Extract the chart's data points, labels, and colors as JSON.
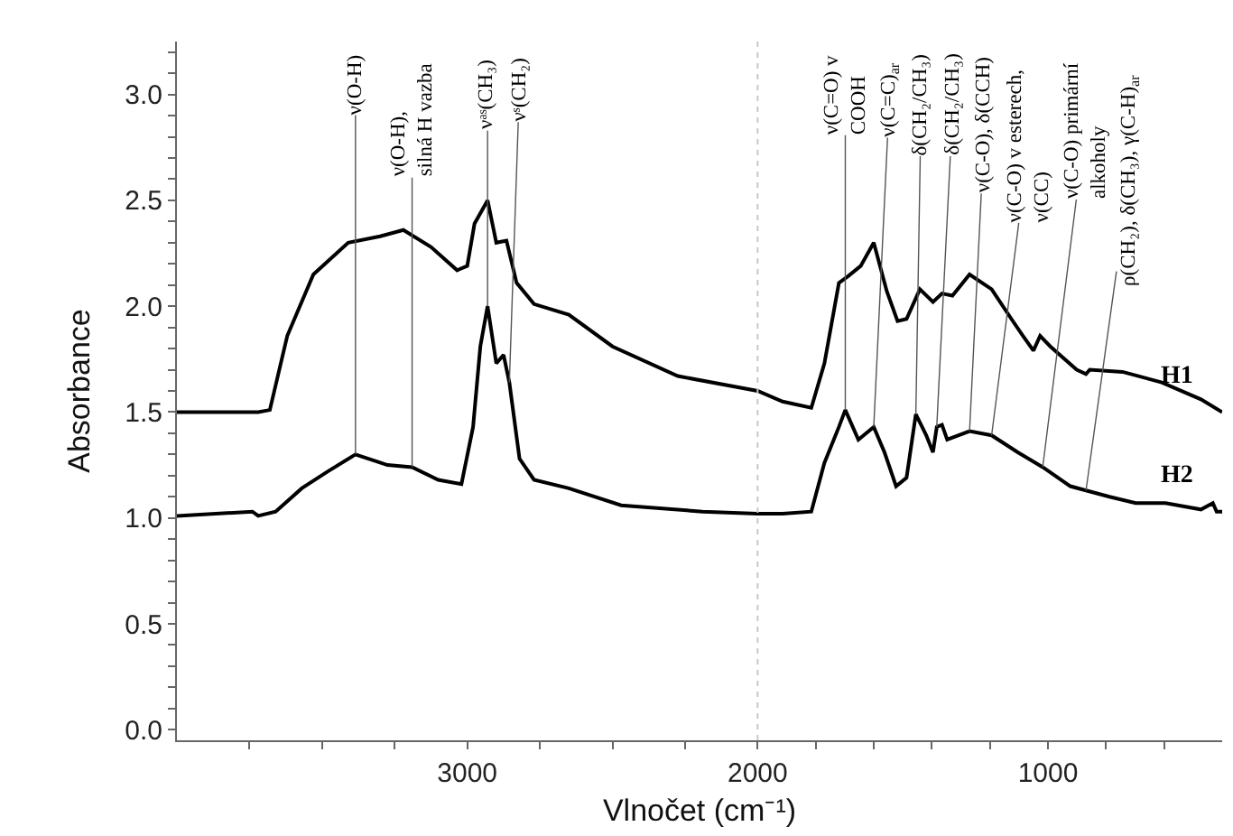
{
  "chart_data": {
    "type": "line",
    "xlabel": "Vlnočet (cm⁻¹)",
    "ylabel": "Absorbance",
    "xlim": [
      4000,
      400
    ],
    "xticks": [
      {
        "value": 3750,
        "label": null
      },
      {
        "value": 3500,
        "label": null
      },
      {
        "value": 3250,
        "label": null
      },
      3000,
      {
        "value": 2750,
        "label": null
      },
      {
        "value": 2500,
        "label": null
      },
      {
        "value": 2250,
        "label": null
      },
      2000,
      {
        "value": 1800,
        "label": null
      },
      {
        "value": 1600,
        "label": null
      },
      {
        "value": 1400,
        "label": null
      },
      {
        "value": 1200,
        "label": null
      },
      1000,
      {
        "value": 800,
        "label": null
      },
      {
        "value": 600,
        "label": null
      }
    ],
    "ylim": [
      -0.05,
      3.25
    ],
    "yticks": [
      {
        "value": 0,
        "label": "0.0"
      },
      {
        "value": 0.1,
        "label": null
      },
      {
        "value": 0.2,
        "label": null
      },
      {
        "value": 0.3,
        "label": null
      },
      {
        "value": 0.4,
        "label": null
      },
      {
        "value": 0.5,
        "label": "0.5"
      },
      {
        "value": 0.6,
        "label": null
      },
      {
        "value": 0.7,
        "label": null
      },
      {
        "value": 0.8,
        "label": null
      },
      {
        "value": 0.9,
        "label": null
      },
      {
        "value": 1,
        "label": "1.0"
      },
      {
        "value": 1.1,
        "label": null
      },
      {
        "value": 1.2,
        "label": null
      },
      {
        "value": 1.3,
        "label": null
      },
      {
        "value": 1.4,
        "label": null
      },
      {
        "value": 1.5,
        "label": "1.5"
      },
      {
        "value": 1.6,
        "label": null
      },
      {
        "value": 1.7,
        "label": null
      },
      {
        "value": 1.8,
        "label": null
      },
      {
        "value": 1.9,
        "label": null
      },
      {
        "value": 2,
        "label": "2.0"
      },
      {
        "value": 2.1,
        "label": null
      },
      {
        "value": 2.2,
        "label": null
      },
      {
        "value": 2.3,
        "label": null
      },
      {
        "value": 2.4,
        "label": null
      },
      {
        "value": 2.5,
        "label": "2.5"
      },
      {
        "value": 2.6,
        "label": null
      },
      {
        "value": 2.7,
        "label": null
      },
      {
        "value": 2.8,
        "label": null
      },
      {
        "value": 2.9,
        "label": null
      },
      {
        "value": 3,
        "label": "3.0"
      },
      {
        "value": 3.1,
        "label": null
      },
      {
        "value": 3.2,
        "label": null
      }
    ],
    "grid": false,
    "legend": false,
    "marker": "none",
    "line_style": "solid",
    "series": [
      {
        "name": "H1",
        "color": "#000000",
        "x": [
          4000,
          3720,
          3680,
          3620,
          3530,
          3410,
          3300,
          3220,
          3125,
          3035,
          3000,
          2975,
          2930,
          2900,
          2865,
          2830,
          2770,
          2650,
          2500,
          2275,
          2000,
          1914,
          1815,
          1770,
          1720,
          1690,
          1645,
          1600,
          1555,
          1518,
          1487,
          1441,
          1396,
          1365,
          1329,
          1270,
          1194,
          1126,
          1086,
          1050,
          1027,
          992,
          901,
          869,
          856,
          743,
          608,
          473,
          400
        ],
        "values": [
          1.5,
          1.5,
          1.51,
          1.86,
          2.15,
          2.3,
          2.33,
          2.36,
          2.28,
          2.17,
          2.19,
          2.39,
          2.5,
          2.3,
          2.31,
          2.11,
          2.01,
          1.96,
          1.81,
          1.67,
          1.6,
          1.55,
          1.52,
          1.73,
          2.11,
          2.14,
          2.19,
          2.3,
          2.07,
          1.93,
          1.94,
          2.08,
          2.02,
          2.06,
          2.05,
          2.15,
          2.08,
          1.94,
          1.86,
          1.79,
          1.86,
          1.81,
          1.7,
          1.68,
          1.7,
          1.69,
          1.64,
          1.56,
          1.5
        ]
      },
      {
        "name": "H2",
        "color": "#000000",
        "x": [
          4000,
          3740,
          3720,
          3660,
          3570,
          3480,
          3385,
          3275,
          3190,
          3100,
          3020,
          2980,
          2955,
          2930,
          2900,
          2875,
          2855,
          2820,
          2770,
          2650,
          2470,
          2190,
          2000,
          1914,
          1815,
          1770,
          1720,
          1698,
          1653,
          1600,
          1563,
          1523,
          1487,
          1455,
          1419,
          1396,
          1383,
          1365,
          1347,
          1270,
          1194,
          1104,
          1018,
          923,
          869,
          788,
          698,
          595,
          473,
          432,
          419,
          400
        ],
        "values": [
          1.01,
          1.03,
          1.01,
          1.03,
          1.14,
          1.22,
          1.3,
          1.25,
          1.24,
          1.18,
          1.16,
          1.43,
          1.81,
          2.0,
          1.73,
          1.77,
          1.64,
          1.28,
          1.18,
          1.14,
          1.06,
          1.03,
          1.02,
          1.02,
          1.03,
          1.26,
          1.43,
          1.51,
          1.37,
          1.43,
          1.31,
          1.15,
          1.19,
          1.49,
          1.39,
          1.31,
          1.43,
          1.44,
          1.37,
          1.41,
          1.39,
          1.31,
          1.24,
          1.15,
          1.13,
          1.1,
          1.07,
          1.07,
          1.04,
          1.07,
          1.03,
          1.03
        ]
      }
    ],
    "ref_lines": [
      {
        "axis": "x",
        "value": 2000,
        "color": "#c8c8c8",
        "line_style": "dotted"
      }
    ],
    "annotations": [
      {
        "text": "ν(O-H)",
        "x": 3385,
        "y": 1.3
      },
      {
        "text": "ν(O-H),\nsilná H vazba",
        "x": 3190,
        "y": 1.24
      },
      {
        "text": "νᵃˢ(CH₃)",
        "x": 2930,
        "y": 2.0
      },
      {
        "text": "νˢ(CH₂)",
        "x": 2855,
        "y": 1.64
      },
      {
        "text": "ν(C=O) v\nCOOH",
        "x": 1698,
        "y": 1.51
      },
      {
        "text": "ν(C=C)$_{ar}$",
        "x": 1600,
        "y": 1.43
      },
      {
        "text": "δ(CH₂/CH₃)",
        "x": 1455,
        "y": 1.49
      },
      {
        "text": "δ(CH₂/CH₃)",
        "x": 1383,
        "y": 1.43
      },
      {
        "text": "ν(C-O), δ(CCH)",
        "x": 1270,
        "y": 1.41
      },
      {
        "text": "ν(C-O) v esterech,\nν(CC)",
        "x": 1194,
        "y": 1.39
      },
      {
        "text": "ν(C-O) primární\nalkoholy",
        "x": 1018,
        "y": 1.24
      },
      {
        "text": "ρ(CH₂), δ(CH₃), γ(C-H)$_{ar}$",
        "x": 869,
        "y": 1.13
      }
    ]
  }
}
